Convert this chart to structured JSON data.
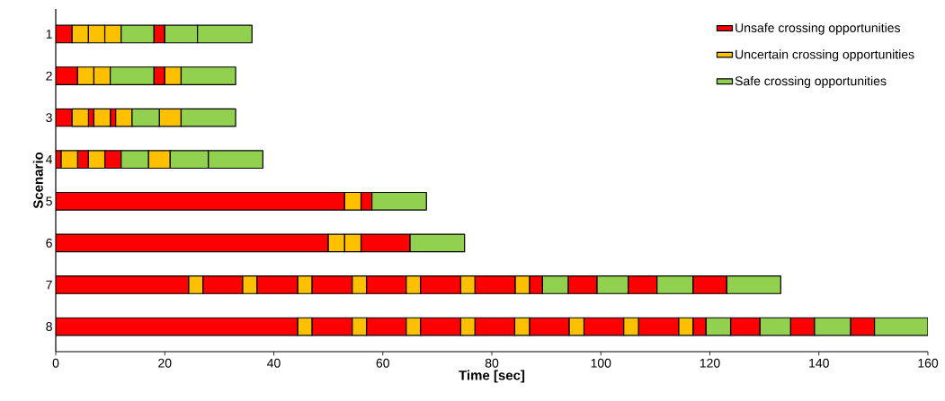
{
  "chart_data": {
    "type": "bar",
    "orientation": "horizontal",
    "xlabel": "Time [sec]",
    "ylabel": "Scenario",
    "categories": [
      "1",
      "2",
      "3",
      "4",
      "5",
      "6",
      "7",
      "8"
    ],
    "xlim": [
      0,
      160
    ],
    "xticks": [
      0,
      20,
      40,
      60,
      80,
      100,
      120,
      140,
      160
    ],
    "legend": "top right",
    "series": [
      {
        "name": "Unsafe crossing opportunities",
        "color": "#ff0000",
        "base": [
          0,
          0,
          0,
          0,
          0,
          0,
          0,
          0
        ],
        "values": [
          3,
          4,
          3,
          1,
          53,
          50,
          24.4,
          44.4
        ]
      },
      {
        "color": "#ff0000",
        "base": [
          18,
          18,
          6,
          4,
          56,
          56,
          27,
          47
        ],
        "values": [
          2,
          2,
          1,
          2,
          2,
          9,
          7.3,
          7.4
        ]
      },
      {
        "color": "#ff0000",
        "base": [
          null,
          null,
          10,
          9,
          null,
          null,
          36.9,
          57
        ],
        "values": [
          null,
          null,
          1,
          3,
          null,
          null,
          7.5,
          7.3
        ]
      },
      {
        "color": "#ff0000",
        "base": [
          null,
          null,
          null,
          null,
          null,
          null,
          47,
          66.9
        ],
        "values": [
          null,
          null,
          null,
          null,
          null,
          null,
          7.4,
          7.4
        ]
      },
      {
        "color": "#ff0000",
        "base": [
          null,
          null,
          null,
          null,
          null,
          null,
          57,
          76.9
        ],
        "values": [
          null,
          null,
          null,
          null,
          null,
          null,
          7.3,
          7.3
        ]
      },
      {
        "color": "#ff0000",
        "base": [
          null,
          null,
          null,
          null,
          null,
          null,
          66.9,
          86.9
        ],
        "values": [
          null,
          null,
          null,
          null,
          null,
          null,
          7.4,
          7.3
        ]
      },
      {
        "color": "#ff0000",
        "base": [
          null,
          null,
          null,
          null,
          null,
          null,
          76.9,
          96.9
        ],
        "values": [
          null,
          null,
          null,
          null,
          null,
          null,
          7.4,
          7.3
        ]
      },
      {
        "color": "#ff0000",
        "base": [
          null,
          null,
          null,
          null,
          null,
          null,
          86.9,
          106.9
        ],
        "values": [
          null,
          null,
          null,
          null,
          null,
          null,
          2.4,
          7.4
        ]
      },
      {
        "color": "#ff0000",
        "base": [
          null,
          null,
          null,
          null,
          null,
          null,
          94,
          116.9
        ],
        "values": [
          null,
          null,
          null,
          null,
          null,
          null,
          5.3,
          2.4
        ]
      },
      {
        "color": "#ff0000",
        "base": [
          null,
          null,
          null,
          null,
          null,
          null,
          105,
          123.8
        ],
        "values": [
          null,
          null,
          null,
          null,
          null,
          null,
          5.3,
          5.4
        ]
      },
      {
        "color": "#ff0000",
        "base": [
          null,
          null,
          null,
          null,
          null,
          null,
          116.9,
          134.8
        ],
        "values": [
          null,
          null,
          null,
          null,
          null,
          null,
          6.2,
          4.4
        ]
      },
      {
        "color": "#ff0000",
        "base": [
          null,
          null,
          null,
          null,
          null,
          null,
          null,
          145.8
        ],
        "values": [
          null,
          null,
          null,
          null,
          null,
          null,
          null,
          4.4
        ]
      },
      {
        "name": "Uncertain crossing opportunities",
        "color": "#ffc000",
        "base": [
          3,
          4,
          3,
          1,
          53,
          50,
          24.4,
          44.4
        ],
        "values": [
          3,
          3,
          3,
          3,
          3,
          3,
          2.6,
          2.6
        ]
      },
      {
        "color": "#ffc000",
        "base": [
          6,
          7,
          7,
          6,
          null,
          53,
          34.3,
          54.4
        ],
        "values": [
          3,
          3,
          3,
          3,
          null,
          3,
          2.6,
          2.6
        ]
      },
      {
        "color": "#ffc000",
        "base": [
          9,
          20,
          11,
          17,
          null,
          null,
          44.4,
          64.3
        ],
        "values": [
          3,
          3,
          3,
          4,
          null,
          null,
          2.6,
          2.6
        ]
      },
      {
        "color": "#ffc000",
        "base": [
          null,
          null,
          19,
          null,
          null,
          null,
          54.4,
          74.3
        ],
        "values": [
          null,
          null,
          4,
          null,
          null,
          null,
          2.6,
          2.6
        ]
      },
      {
        "color": "#ffc000",
        "base": [
          null,
          null,
          null,
          null,
          null,
          null,
          64.3,
          84.2
        ],
        "values": [
          null,
          null,
          null,
          null,
          null,
          null,
          2.6,
          2.7
        ]
      },
      {
        "color": "#ffc000",
        "base": [
          null,
          null,
          null,
          null,
          null,
          null,
          74.3,
          94.2
        ],
        "values": [
          null,
          null,
          null,
          null,
          null,
          null,
          2.6,
          2.7
        ]
      },
      {
        "color": "#ffc000",
        "base": [
          null,
          null,
          null,
          null,
          null,
          null,
          84.3,
          104.2
        ],
        "values": [
          null,
          null,
          null,
          null,
          null,
          null,
          2.6,
          2.7
        ]
      },
      {
        "color": "#ffc000",
        "base": [
          null,
          null,
          null,
          null,
          null,
          null,
          null,
          114.3
        ],
        "values": [
          null,
          null,
          null,
          null,
          null,
          null,
          null,
          2.6
        ]
      },
      {
        "name": "Safe crossing opportunities",
        "color": "#92d050",
        "base": [
          12,
          10,
          14,
          12,
          58,
          65,
          89.3,
          119.3
        ],
        "values": [
          6,
          8,
          5,
          5,
          10,
          10,
          4.7,
          4.5
        ]
      },
      {
        "color": "#92d050",
        "base": [
          20,
          23,
          23,
          21,
          null,
          null,
          99.3,
          129.2
        ],
        "values": [
          6,
          10,
          10,
          7,
          null,
          null,
          5.7,
          5.6
        ]
      },
      {
        "color": "#92d050",
        "base": [
          26,
          null,
          null,
          28,
          null,
          null,
          110.3,
          139.2
        ],
        "values": [
          10,
          null,
          null,
          10,
          null,
          null,
          6.6,
          6.6
        ]
      },
      {
        "color": "#92d050",
        "base": [
          null,
          null,
          null,
          null,
          null,
          null,
          123.1,
          150.2
        ],
        "values": [
          null,
          null,
          null,
          null,
          null,
          null,
          9.9,
          9.8
        ]
      }
    ]
  }
}
